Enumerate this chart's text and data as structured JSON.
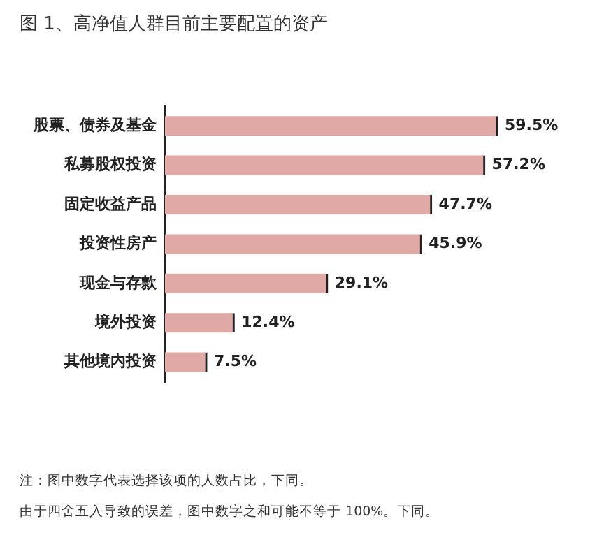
{
  "chart_data": {
    "type": "bar",
    "orientation": "horizontal",
    "title": "图 1、高净值人群目前主要配置的资产",
    "categories": [
      "股票、债券及基金",
      "私募股权投资",
      "固定收益产品",
      "投资性房产",
      "现金与存款",
      "境外投资",
      "其他境内投资"
    ],
    "values": [
      59.5,
      57.2,
      47.7,
      45.9,
      29.1,
      12.4,
      7.5
    ],
    "value_labels": [
      "59.5%",
      "57.2%",
      "47.7%",
      "45.9%",
      "29.1%",
      "12.4%",
      "7.5%"
    ],
    "color": "#e0a9a6",
    "grid": false,
    "legend": false,
    "annotations": [
      "注：图中数字代表选择该项的人数占比，下同。",
      "由于四舍五入导致的误差，图中数字之和可能不等于 100%。下同。"
    ]
  }
}
